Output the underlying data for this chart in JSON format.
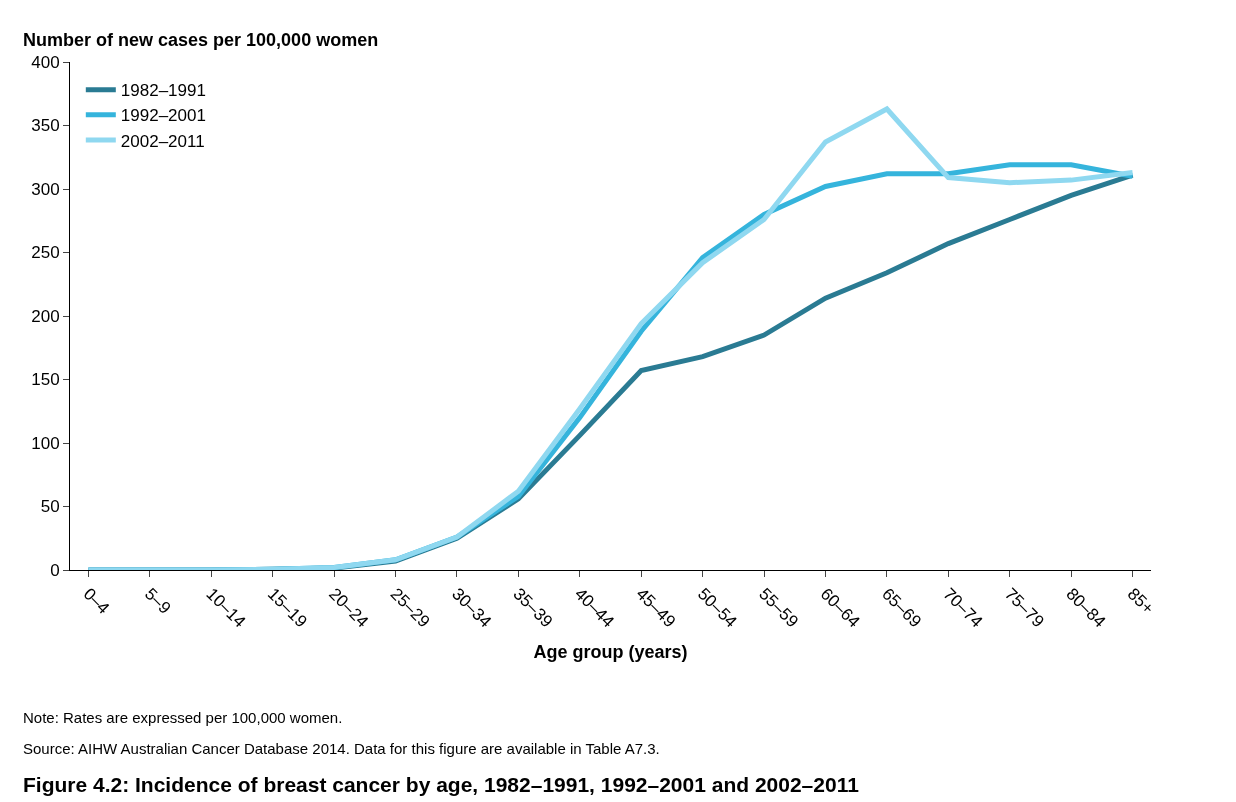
{
  "chart_data": {
    "type": "line",
    "title": "Figure 4.2: Incidence of breast cancer by age, 1982–1991, 1992–2001 and 2002–2011",
    "ylabel": "Number of new cases per 100,000 women",
    "xlabel": "Age group (years)",
    "categories": [
      "0–4",
      "5–9",
      "10–14",
      "15–19",
      "20–24",
      "25–29",
      "30–34",
      "35–39",
      "40–44",
      "45–49",
      "50–54",
      "55–59",
      "60–64",
      "65–69",
      "70–74",
      "75–79",
      "80–84",
      "85+"
    ],
    "series": [
      {
        "name": "1982–1991",
        "color": "#2a7b93",
        "values": [
          0,
          0,
          0,
          0.5,
          1.5,
          7,
          25,
          56,
          106,
          157,
          168,
          185,
          214,
          234,
          257,
          276,
          295,
          311
        ]
      },
      {
        "name": "1992–2001",
        "color": "#35b4dc",
        "values": [
          0,
          0,
          0,
          0.5,
          2,
          8,
          26,
          58,
          120,
          188,
          246,
          280,
          302,
          312,
          312,
          319,
          319,
          310
        ]
      },
      {
        "name": "2002–2011",
        "color": "#8fd8f0",
        "values": [
          0,
          0,
          0,
          0.5,
          2,
          8,
          26,
          62,
          127,
          194,
          242,
          276,
          337,
          363,
          309,
          305,
          307,
          313
        ]
      }
    ],
    "ylim": [
      0,
      400
    ],
    "yticks": [
      0,
      50,
      100,
      150,
      200,
      250,
      300,
      350,
      400
    ],
    "legend": "top left",
    "marker": "none",
    "line_style": "solid",
    "annotations": [
      "Note: Rates are expressed per 100,000 women.",
      "Source: AIHW Australian Cancer Database 2014. Data for this figure are available in Table A7.3."
    ]
  }
}
